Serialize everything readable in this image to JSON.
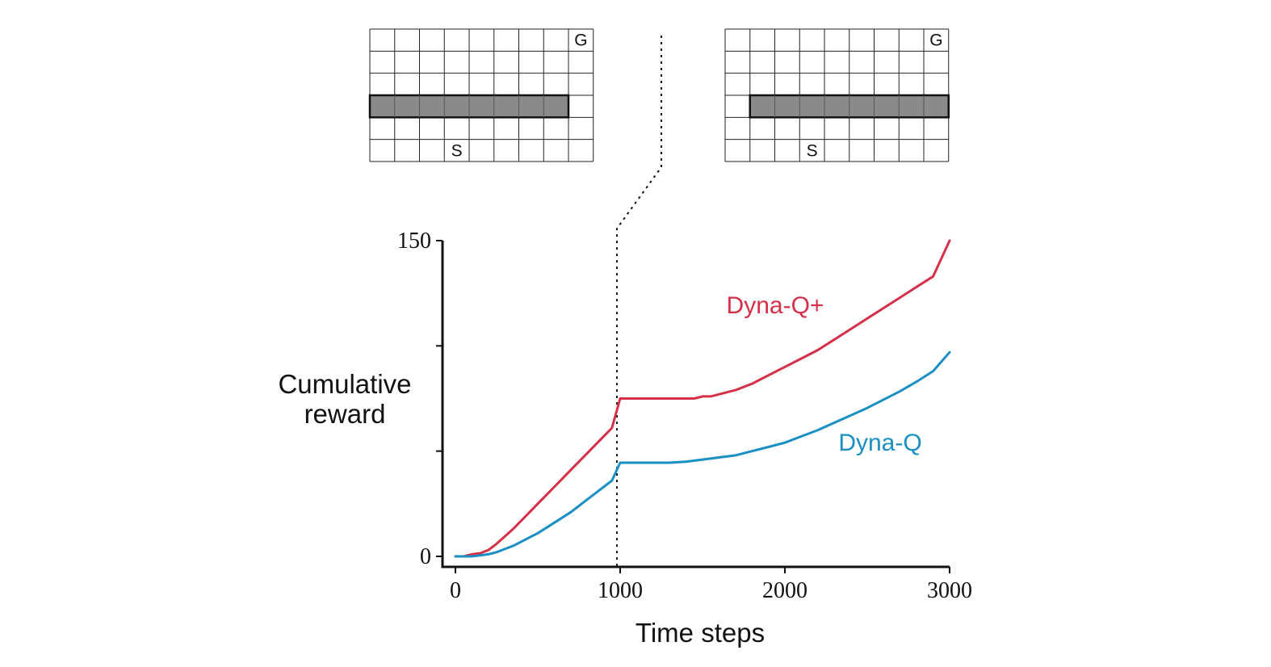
{
  "chart_data": {
    "type": "line",
    "xlabel": "Time steps",
    "ylabel": [
      "Cumulative",
      "reward"
    ],
    "xlim": [
      0,
      3000
    ],
    "ylim": [
      0,
      150
    ],
    "x_ticks": [
      "0",
      "1000",
      "2000",
      "3000"
    ],
    "x_tick_values": [
      0,
      1000,
      2000,
      3000
    ],
    "y_ticks": [
      0,
      50,
      100,
      150
    ],
    "y_tick_labels": [
      "0",
      "",
      "",
      "150"
    ],
    "change_point": 1000,
    "grid": false,
    "series": [
      {
        "name": "Dyna-Q+",
        "color": "#d62f48",
        "x": [
          0,
          50,
          100,
          150,
          200,
          250,
          300,
          350,
          400,
          450,
          500,
          550,
          600,
          650,
          700,
          750,
          800,
          850,
          900,
          950,
          1000,
          1100,
          1200,
          1300,
          1400,
          1450,
          1500,
          1550,
          1600,
          1650,
          1700,
          1750,
          1800,
          1850,
          1900,
          1950,
          2000,
          2100,
          2200,
          2300,
          2400,
          2500,
          2600,
          2700,
          2800,
          2900,
          3000
        ],
        "values": [
          0,
          0,
          1,
          1.5,
          3,
          6,
          9.5,
          13,
          17,
          21,
          25,
          29,
          33,
          37,
          41,
          45,
          49,
          53,
          57,
          61,
          75,
          75,
          75,
          75,
          75,
          75,
          76,
          76,
          77,
          78,
          79,
          80.5,
          82,
          84,
          86,
          88,
          90,
          94,
          98,
          103,
          108,
          113,
          118,
          123,
          128,
          133,
          150
        ]
      },
      {
        "name": "Dyna-Q",
        "color": "#1a8fc4",
        "x": [
          0,
          50,
          100,
          150,
          200,
          250,
          300,
          350,
          400,
          450,
          500,
          550,
          600,
          650,
          700,
          750,
          800,
          850,
          900,
          950,
          1000,
          1100,
          1200,
          1300,
          1400,
          1500,
          1600,
          1700,
          1800,
          1900,
          2000,
          2100,
          2200,
          2300,
          2400,
          2500,
          2600,
          2700,
          2800,
          2900,
          3000
        ],
        "values": [
          0,
          0,
          0,
          0.5,
          1,
          2,
          3.5,
          5,
          7,
          9,
          11,
          13.5,
          16,
          18.5,
          21,
          24,
          27,
          30,
          33,
          36,
          44.5,
          44.5,
          44.5,
          44.5,
          45,
          46,
          47,
          48,
          50,
          52,
          54,
          57,
          60,
          63.5,
          67,
          70.5,
          74.5,
          78.5,
          83,
          88,
          97
        ]
      }
    ]
  },
  "grids": {
    "before": {
      "start_label": "S",
      "goal_label": "G"
    },
    "after": {
      "start_label": "S",
      "goal_label": "G"
    }
  }
}
